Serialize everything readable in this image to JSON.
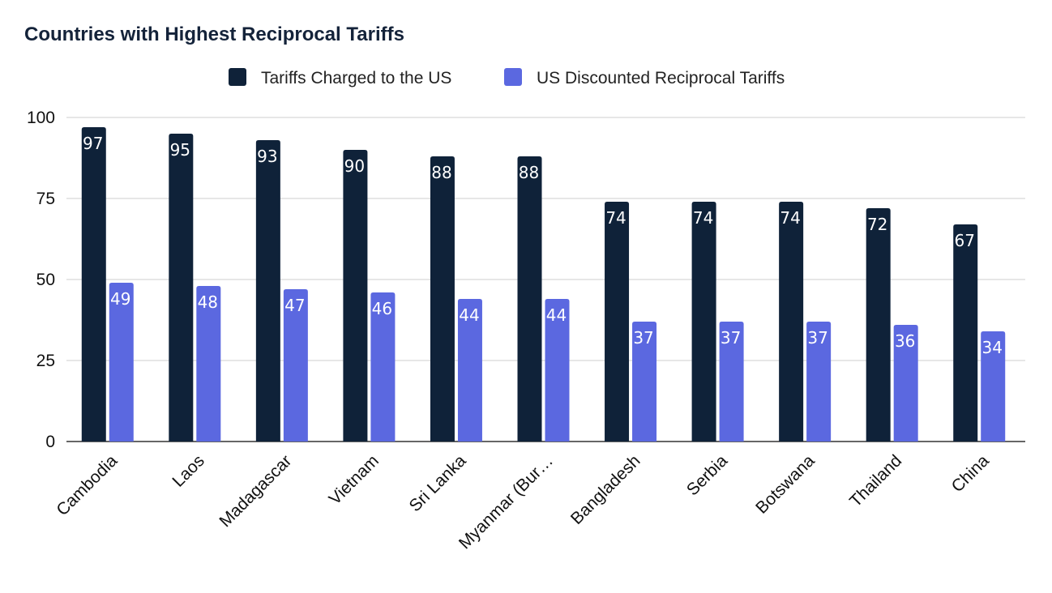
{
  "chart_data": {
    "type": "bar",
    "title": "Countries with Highest Reciprocal Tariffs",
    "categories": [
      "Cambodia",
      "Laos",
      "Madagascar",
      "Vietnam",
      "Sri Lanka",
      "Myanmar (Bur…",
      "Bangladesh",
      "Serbia",
      "Botswana",
      "Thailand",
      "China"
    ],
    "series": [
      {
        "name": "Tariffs Charged to the US",
        "color": "#0f2239",
        "values": [
          97,
          95,
          93,
          90,
          88,
          88,
          74,
          74,
          74,
          72,
          67
        ]
      },
      {
        "name": "US Discounted Reciprocal Tariffs",
        "color": "#5b68e0",
        "values": [
          49,
          48,
          47,
          46,
          44,
          44,
          37,
          37,
          37,
          36,
          34
        ]
      }
    ],
    "data_label_text": [
      [
        "97",
        "95",
        "93",
        "90",
        "88",
        "88",
        "74",
        "74",
        "74",
        "72",
        "67"
      ],
      [
        "49",
        "48",
        "47",
        "46",
        "44",
        "44",
        "37",
        "37",
        "37",
        "36",
        "34"
      ]
    ],
    "ylim": [
      0,
      100
    ],
    "yticks": [
      0,
      25,
      50,
      75,
      100
    ],
    "xlabel": "",
    "ylabel": "",
    "grid": true,
    "legend_position": "top-center"
  }
}
